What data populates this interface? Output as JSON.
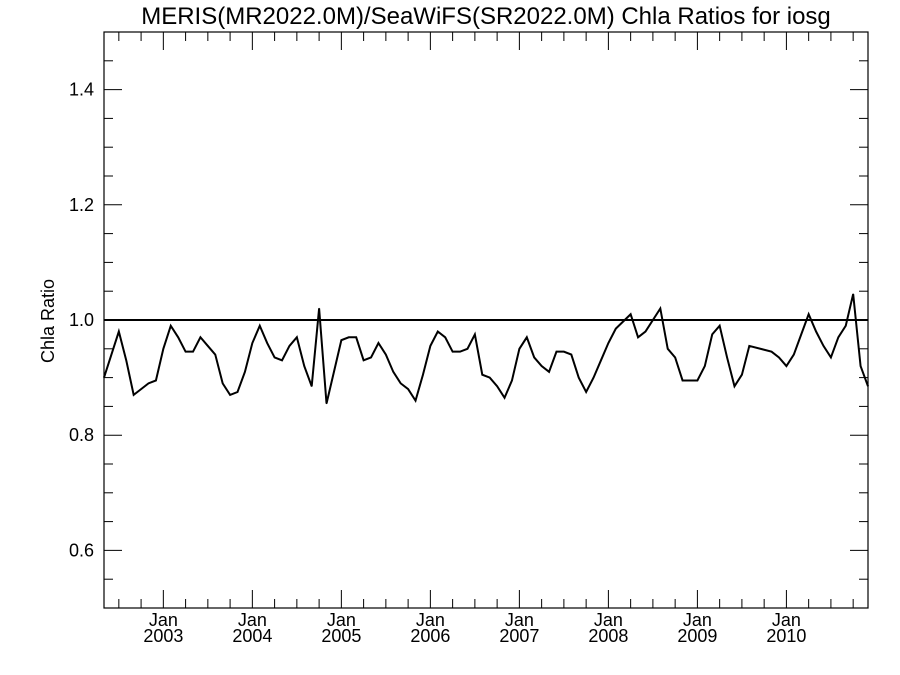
{
  "chart_data": {
    "type": "line",
    "title": "MERIS(MR2022.0M)/SeaWiFS(SR2022.0M)  Chla Ratios for iosg",
    "xlabel": "",
    "ylabel": "Chla Ratio",
    "ylim": [
      0.5,
      1.5
    ],
    "xlim": [
      "2002-05",
      "2010-12"
    ],
    "yticks": [
      0.6,
      0.8,
      1.0,
      1.2,
      1.4
    ],
    "yminor_step": 0.05,
    "xticks": [
      {
        "month": "Jan",
        "year": "2003",
        "date": "2003-01"
      },
      {
        "month": "Jan",
        "year": "2004",
        "date": "2004-01"
      },
      {
        "month": "Jan",
        "year": "2005",
        "date": "2005-01"
      },
      {
        "month": "Jan",
        "year": "2006",
        "date": "2006-01"
      },
      {
        "month": "Jan",
        "year": "2007",
        "date": "2007-01"
      },
      {
        "month": "Jan",
        "year": "2008",
        "date": "2008-01"
      },
      {
        "month": "Jan",
        "year": "2009",
        "date": "2009-01"
      },
      {
        "month": "Jan",
        "year": "2010",
        "date": "2010-01"
      }
    ],
    "reference_line": 1.0,
    "grid": false,
    "series": [
      {
        "color": "#000000",
        "x": [
          "2002-05",
          "2002-06",
          "2002-07",
          "2002-08",
          "2002-09",
          "2002-10",
          "2002-11",
          "2002-12",
          "2003-01",
          "2003-02",
          "2003-03",
          "2003-04",
          "2003-05",
          "2003-06",
          "2003-07",
          "2003-08",
          "2003-09",
          "2003-10",
          "2003-11",
          "2003-12",
          "2004-01",
          "2004-02",
          "2004-03",
          "2004-04",
          "2004-05",
          "2004-06",
          "2004-07",
          "2004-08",
          "2004-09",
          "2004-10",
          "2004-11",
          "2004-12",
          "2005-01",
          "2005-02",
          "2005-03",
          "2005-04",
          "2005-05",
          "2005-06",
          "2005-07",
          "2005-08",
          "2005-09",
          "2005-10",
          "2005-11",
          "2005-12",
          "2006-01",
          "2006-02",
          "2006-03",
          "2006-04",
          "2006-05",
          "2006-06",
          "2006-07",
          "2006-08",
          "2006-09",
          "2006-10",
          "2006-11",
          "2006-12",
          "2007-01",
          "2007-02",
          "2007-03",
          "2007-04",
          "2007-05",
          "2007-06",
          "2007-07",
          "2007-08",
          "2007-09",
          "2007-10",
          "2007-11",
          "2007-12",
          "2008-01",
          "2008-02",
          "2008-04",
          "2008-05",
          "2008-06",
          "2008-08",
          "2008-09",
          "2008-10",
          "2008-11",
          "2008-12",
          "2009-01",
          "2009-02",
          "2009-03",
          "2009-04",
          "2009-05",
          "2009-06",
          "2009-07",
          "2009-08",
          "2009-11",
          "2009-12",
          "2010-01",
          "2010-02",
          "2010-03",
          "2010-04",
          "2010-05",
          "2010-06",
          "2010-07",
          "2010-08",
          "2010-09",
          "2010-10",
          "2010-11",
          "2010-12"
        ],
        "y": [
          0.9,
          0.94,
          0.98,
          0.93,
          0.87,
          0.88,
          0.89,
          0.895,
          0.95,
          0.99,
          0.97,
          0.945,
          0.945,
          0.97,
          0.955,
          0.94,
          0.89,
          0.87,
          0.875,
          0.91,
          0.96,
          0.99,
          0.96,
          0.935,
          0.93,
          0.955,
          0.97,
          0.92,
          0.885,
          1.02,
          0.855,
          0.91,
          0.965,
          0.97,
          0.97,
          0.93,
          0.935,
          0.96,
          0.94,
          0.91,
          0.89,
          0.88,
          0.86,
          0.905,
          0.955,
          0.98,
          0.97,
          0.945,
          0.945,
          0.95,
          0.975,
          0.905,
          0.9,
          0.885,
          0.865,
          0.895,
          0.95,
          0.97,
          0.935,
          0.92,
          0.91,
          0.945,
          0.945,
          0.94,
          0.9,
          0.875,
          0.9,
          0.93,
          0.96,
          0.985,
          1.01,
          0.97,
          0.98,
          1.02,
          0.95,
          0.935,
          0.895,
          0.895,
          0.895,
          0.92,
          0.975,
          0.99,
          0.935,
          0.885,
          0.905,
          0.955,
          0.945,
          0.935,
          0.92,
          0.94,
          0.975,
          1.01,
          0.98,
          0.955,
          0.935,
          0.97,
          0.99,
          1.045,
          0.92,
          0.885
        ]
      }
    ]
  }
}
